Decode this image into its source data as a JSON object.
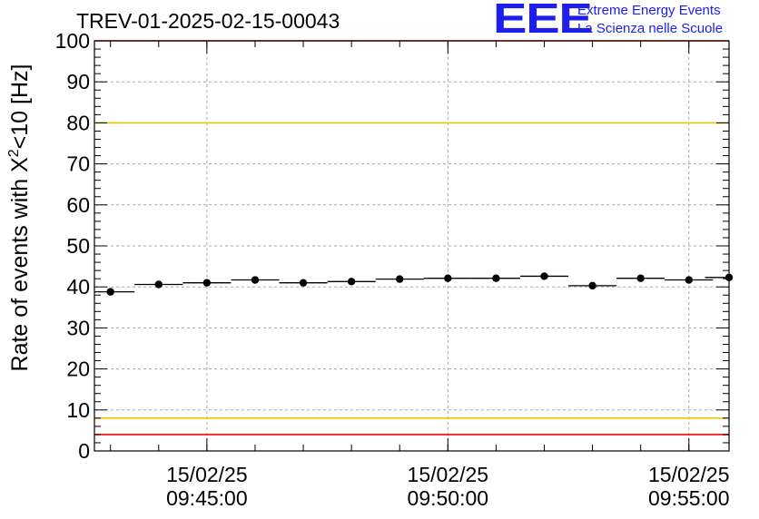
{
  "title": "TREV-01-2025-02-15-00043",
  "logo": {
    "mark": "EEE",
    "line1": "Extreme Energy Events",
    "line2": "La Scienza nelle Scuole",
    "color": "#1d1df0"
  },
  "chart_data": {
    "type": "scatter",
    "title": "TREV-01-2025-02-15-00043",
    "xlabel": "",
    "ylabel": "Rate of events with X²<10 [Hz]",
    "ylim": [
      0,
      100
    ],
    "yticks": [
      0,
      10,
      20,
      30,
      40,
      50,
      60,
      70,
      80,
      90,
      100
    ],
    "xlim": [
      "09:42:40",
      "09:55:50"
    ],
    "xticks": [
      {
        "t": "09:45:00",
        "date": "15/02/25",
        "time": "09:45:00"
      },
      {
        "t": "09:50:00",
        "date": "15/02/25",
        "time": "09:50:00"
      },
      {
        "t": "09:55:00",
        "date": "15/02/25",
        "time": "09:55:00"
      }
    ],
    "grid": true,
    "series": [
      {
        "x": [
          "09:43:00",
          "09:44:00",
          "09:45:00",
          "09:46:00",
          "09:47:00",
          "09:48:00",
          "09:49:00",
          "09:50:00",
          "09:51:00",
          "09:52:00",
          "09:53:00",
          "09:54:00",
          "09:55:00",
          "09:55:50"
        ],
        "y": [
          38.8,
          40.6,
          41.0,
          41.7,
          41.0,
          41.3,
          41.9,
          42.1,
          42.1,
          42.6,
          40.3,
          42.1,
          41.7,
          42.3
        ],
        "bin_width_seconds": 60,
        "color": "#000000"
      }
    ],
    "reference_lines": [
      {
        "y": 100,
        "color": "#ff0000"
      },
      {
        "y": 80,
        "color": "#f2c200"
      },
      {
        "y": 8,
        "color": "#f2c200"
      },
      {
        "y": 4,
        "color": "#ff0000"
      }
    ]
  }
}
